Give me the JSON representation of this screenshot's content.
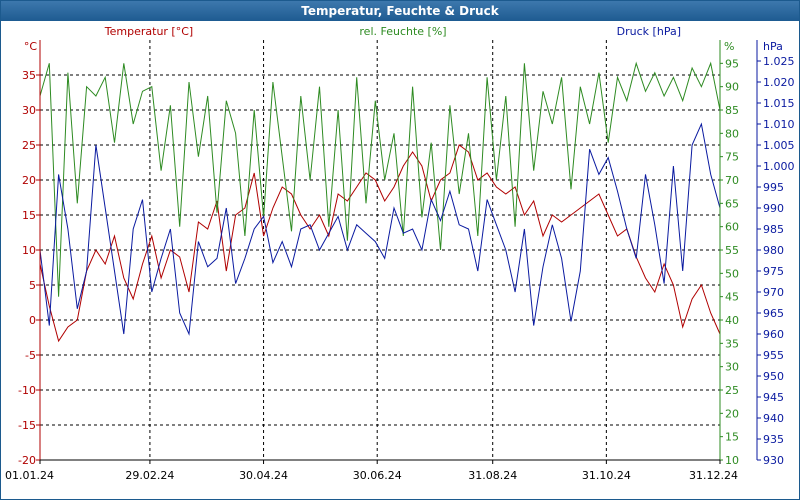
{
  "window": {
    "title": "Temperatur, Feuchte & Druck"
  },
  "colors": {
    "temperature": "#b00000",
    "humidity": "#2e8b22",
    "pressure": "#0a1aa0",
    "titlebar": "#2a67a0",
    "grid": "#000000"
  },
  "chart_data": {
    "type": "line",
    "title": "Temperatur, Feuchte & Druck",
    "grid": true,
    "xlabel": "",
    "x_ticks": [
      "01.01.24",
      "29.02.24",
      "30.04.24",
      "30.06.24",
      "31.08.24",
      "31.10.24",
      "31.12.24"
    ],
    "x_range": [
      "01.01.24",
      "31.12.24"
    ],
    "axes": {
      "temperature": {
        "label": "Temperatur [°C]",
        "unit": "°C",
        "range": [
          -20,
          40
        ],
        "ticks": [
          -20,
          -15,
          -10,
          -5,
          0,
          5,
          10,
          15,
          20,
          25,
          30,
          35
        ]
      },
      "humidity": {
        "label": "rel. Feuchte [%]",
        "unit": "%",
        "range": [
          10,
          100
        ],
        "ticks": [
          10,
          15,
          20,
          25,
          30,
          35,
          40,
          45,
          50,
          55,
          60,
          65,
          70,
          75,
          80,
          85,
          90,
          95
        ]
      },
      "pressure": {
        "label": "Druck [hPa]",
        "unit": "hPa",
        "range": [
          930,
          1030
        ],
        "ticks": [
          "930",
          "935",
          "940",
          "945",
          "950",
          "955",
          "960",
          "965",
          "970",
          "975",
          "980",
          "985",
          "990",
          "995",
          "1.000",
          "1.005",
          "1.010",
          "1.015",
          "1.020",
          "1.025"
        ]
      }
    },
    "series": [
      {
        "name": "Temperatur [°C]",
        "axis": "temperature",
        "x": [
          "01.01.24",
          "06.01.24",
          "11.01.24",
          "16.01.24",
          "21.01.24",
          "26.01.24",
          "31.01.24",
          "05.02.24",
          "10.02.24",
          "15.02.24",
          "20.02.24",
          "25.02.24",
          "01.03.24",
          "06.03.24",
          "11.03.24",
          "16.03.24",
          "21.03.24",
          "26.03.24",
          "31.03.24",
          "05.04.24",
          "10.04.24",
          "15.04.24",
          "20.04.24",
          "25.04.24",
          "30.04.24",
          "05.05.24",
          "10.05.24",
          "15.05.24",
          "20.05.24",
          "25.05.24",
          "30.05.24",
          "04.06.24",
          "09.06.24",
          "14.06.24",
          "19.06.24",
          "24.06.24",
          "29.06.24",
          "04.07.24",
          "09.07.24",
          "14.07.24",
          "19.07.24",
          "24.07.24",
          "29.07.24",
          "03.08.24",
          "08.08.24",
          "13.08.24",
          "18.08.24",
          "23.08.24",
          "28.08.24",
          "02.09.24",
          "07.09.24",
          "12.09.24",
          "17.09.24",
          "22.09.24",
          "27.09.24",
          "02.10.24",
          "07.10.24",
          "12.10.24",
          "17.10.24",
          "22.10.24",
          "27.10.24",
          "01.11.24",
          "06.11.24",
          "11.11.24",
          "16.11.24",
          "21.11.24",
          "26.11.24",
          "01.12.24",
          "06.12.24",
          "11.12.24",
          "16.12.24",
          "21.12.24",
          "26.12.24",
          "31.12.24"
        ],
        "y": [
          8,
          2,
          -3,
          -1,
          0,
          7,
          10,
          8,
          12,
          6,
          3,
          8,
          12,
          6,
          10,
          9,
          4,
          14,
          13,
          17,
          7,
          15,
          16,
          21,
          12,
          16,
          19,
          18,
          15,
          13,
          15,
          12,
          18,
          17,
          19,
          21,
          20,
          17,
          19,
          22,
          24,
          22,
          17,
          20,
          21,
          25,
          24,
          20,
          21,
          19,
          18,
          19,
          15,
          17,
          12,
          15,
          14,
          15,
          16,
          17,
          18,
          15,
          12,
          13,
          9,
          6,
          4,
          8,
          5,
          -1,
          3,
          5,
          1,
          -2
        ]
      },
      {
        "name": "rel. Feuchte [%]",
        "axis": "humidity",
        "x": [
          "01.01.24",
          "06.01.24",
          "11.01.24",
          "16.01.24",
          "21.01.24",
          "26.01.24",
          "31.01.24",
          "05.02.24",
          "10.02.24",
          "15.02.24",
          "20.02.24",
          "25.02.24",
          "01.03.24",
          "06.03.24",
          "11.03.24",
          "16.03.24",
          "21.03.24",
          "26.03.24",
          "31.03.24",
          "05.04.24",
          "10.04.24",
          "15.04.24",
          "20.04.24",
          "25.04.24",
          "30.04.24",
          "05.05.24",
          "10.05.24",
          "15.05.24",
          "20.05.24",
          "25.05.24",
          "30.05.24",
          "04.06.24",
          "09.06.24",
          "14.06.24",
          "19.06.24",
          "24.06.24",
          "29.06.24",
          "04.07.24",
          "09.07.24",
          "14.07.24",
          "19.07.24",
          "24.07.24",
          "29.07.24",
          "03.08.24",
          "08.08.24",
          "13.08.24",
          "18.08.24",
          "23.08.24",
          "28.08.24",
          "02.09.24",
          "07.09.24",
          "12.09.24",
          "17.09.24",
          "22.09.24",
          "27.09.24",
          "02.10.24",
          "07.10.24",
          "12.10.24",
          "17.10.24",
          "22.10.24",
          "27.10.24",
          "01.11.24",
          "06.11.24",
          "11.11.24",
          "16.11.24",
          "21.11.24",
          "26.11.24",
          "01.12.24",
          "06.12.24",
          "11.12.24",
          "16.12.24",
          "21.12.24",
          "26.12.24",
          "31.12.24"
        ],
        "y": [
          88,
          95,
          45,
          93,
          65,
          90,
          88,
          92,
          78,
          95,
          82,
          89,
          90,
          72,
          86,
          60,
          91,
          75,
          88,
          63,
          87,
          80,
          58,
          85,
          62,
          91,
          75,
          59,
          88,
          70,
          90,
          60,
          85,
          57,
          92,
          65,
          87,
          70,
          80,
          58,
          90,
          62,
          78,
          55,
          86,
          67,
          80,
          58,
          92,
          70,
          88,
          60,
          95,
          72,
          89,
          82,
          92,
          68,
          90,
          82,
          93,
          78,
          92,
          87,
          95,
          89,
          93,
          88,
          92,
          87,
          94,
          90,
          95,
          85
        ]
      },
      {
        "name": "Druck [hPa]",
        "axis": "pressure",
        "x": [
          "01.01.24",
          "06.01.24",
          "11.01.24",
          "16.01.24",
          "21.01.24",
          "26.01.24",
          "31.01.24",
          "05.02.24",
          "10.02.24",
          "15.02.24",
          "20.02.24",
          "25.02.24",
          "01.03.24",
          "06.03.24",
          "11.03.24",
          "16.03.24",
          "21.03.24",
          "26.03.24",
          "31.03.24",
          "05.04.24",
          "10.04.24",
          "15.04.24",
          "20.04.24",
          "25.04.24",
          "30.04.24",
          "05.05.24",
          "10.05.24",
          "15.05.24",
          "20.05.24",
          "25.05.24",
          "30.05.24",
          "04.06.24",
          "09.06.24",
          "14.06.24",
          "19.06.24",
          "24.06.24",
          "29.06.24",
          "04.07.24",
          "09.07.24",
          "14.07.24",
          "19.07.24",
          "24.07.24",
          "29.07.24",
          "03.08.24",
          "08.08.24",
          "13.08.24",
          "18.08.24",
          "23.08.24",
          "28.08.24",
          "02.09.24",
          "07.09.24",
          "12.09.24",
          "17.09.24",
          "22.09.24",
          "27.09.24",
          "02.10.24",
          "07.10.24",
          "12.10.24",
          "17.10.24",
          "22.10.24",
          "27.10.24",
          "01.11.24",
          "06.11.24",
          "11.11.24",
          "16.11.24",
          "21.11.24",
          "26.11.24",
          "01.12.24",
          "06.12.24",
          "11.12.24",
          "16.12.24",
          "21.12.24",
          "26.12.24",
          "31.12.24"
        ],
        "y": [
          980,
          962,
          998,
          985,
          966,
          975,
          1005,
          990,
          975,
          960,
          985,
          992,
          970,
          978,
          985,
          965,
          960,
          982,
          976,
          978,
          990,
          972,
          978,
          985,
          988,
          977,
          982,
          976,
          985,
          986,
          980,
          984,
          988,
          980,
          986,
          984,
          982,
          978,
          990,
          984,
          985,
          980,
          992,
          987,
          994,
          986,
          985,
          975,
          992,
          986,
          980,
          970,
          985,
          962,
          976,
          986,
          978,
          963,
          975,
          1004,
          998,
          1002,
          994,
          985,
          978,
          998,
          986,
          972,
          1000,
          975,
          1005,
          1010,
          998,
          990
        ]
      }
    ]
  }
}
